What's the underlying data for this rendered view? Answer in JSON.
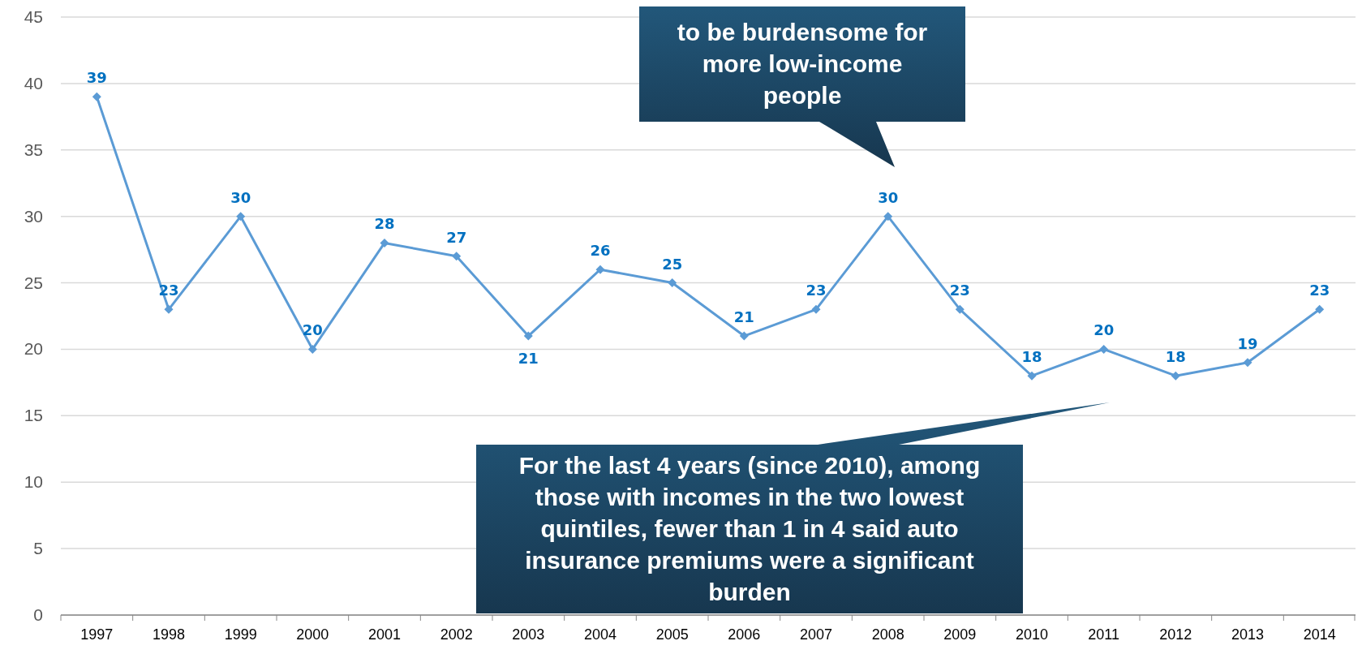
{
  "chart_data": {
    "type": "line",
    "categories": [
      "1997",
      "1998",
      "1999",
      "2000",
      "2001",
      "2002",
      "2003",
      "2004",
      "2005",
      "2006",
      "2007",
      "2008",
      "2009",
      "2010",
      "2011",
      "2012",
      "2013",
      "2014"
    ],
    "series": [
      {
        "color": "#5b9bd5",
        "values": [
          39,
          23,
          30,
          20,
          28,
          27,
          21,
          26,
          25,
          21,
          23,
          30,
          23,
          18,
          20,
          18,
          19,
          23
        ]
      }
    ],
    "ylim": [
      0,
      45
    ],
    "yticks": [
      0,
      5,
      10,
      15,
      20,
      25,
      30,
      35,
      40,
      45
    ],
    "grid": "y",
    "marker": "diamond",
    "line_style": "solid",
    "data_labels": true,
    "annotations": [
      "to be burdensome for more low-income people",
      "For the last 4 years (since 2010), among those with incomes in the two lowest quintiles, fewer than 1 in 4 said auto insurance premiums were a significant burden"
    ]
  }
}
